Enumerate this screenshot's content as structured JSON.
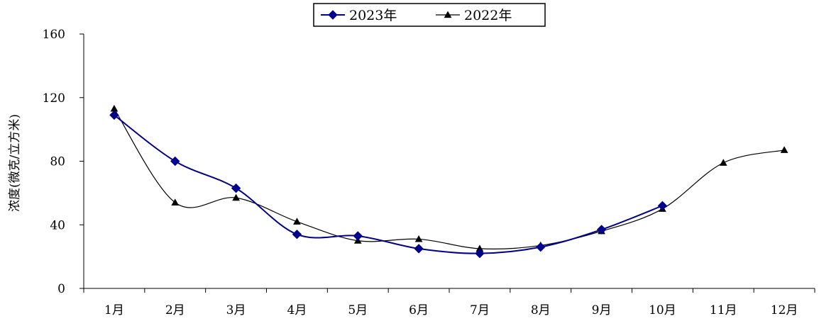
{
  "chart_data": {
    "type": "line",
    "title": "",
    "xlabel": "",
    "ylabel": "浓度(微克/立方米)",
    "categories": [
      "1月",
      "2月",
      "3月",
      "4月",
      "5月",
      "6月",
      "7月",
      "8月",
      "9月",
      "10月",
      "11月",
      "12月"
    ],
    "ylim": [
      0,
      160
    ],
    "yticks": [
      "0",
      "40",
      "80",
      "120",
      "160"
    ],
    "grid": false,
    "legend_placement": "top-center",
    "series": [
      {
        "name": "2023年",
        "color": "#00008b",
        "marker": "diamond",
        "values": [
          109,
          80,
          63,
          34,
          33,
          25,
          22,
          26,
          37,
          52,
          null,
          null
        ]
      },
      {
        "name": "2022年",
        "color": "#000000",
        "marker": "triangle",
        "values": [
          113,
          54,
          57,
          42,
          30,
          31,
          25,
          27,
          36,
          50,
          79,
          87
        ]
      }
    ]
  }
}
